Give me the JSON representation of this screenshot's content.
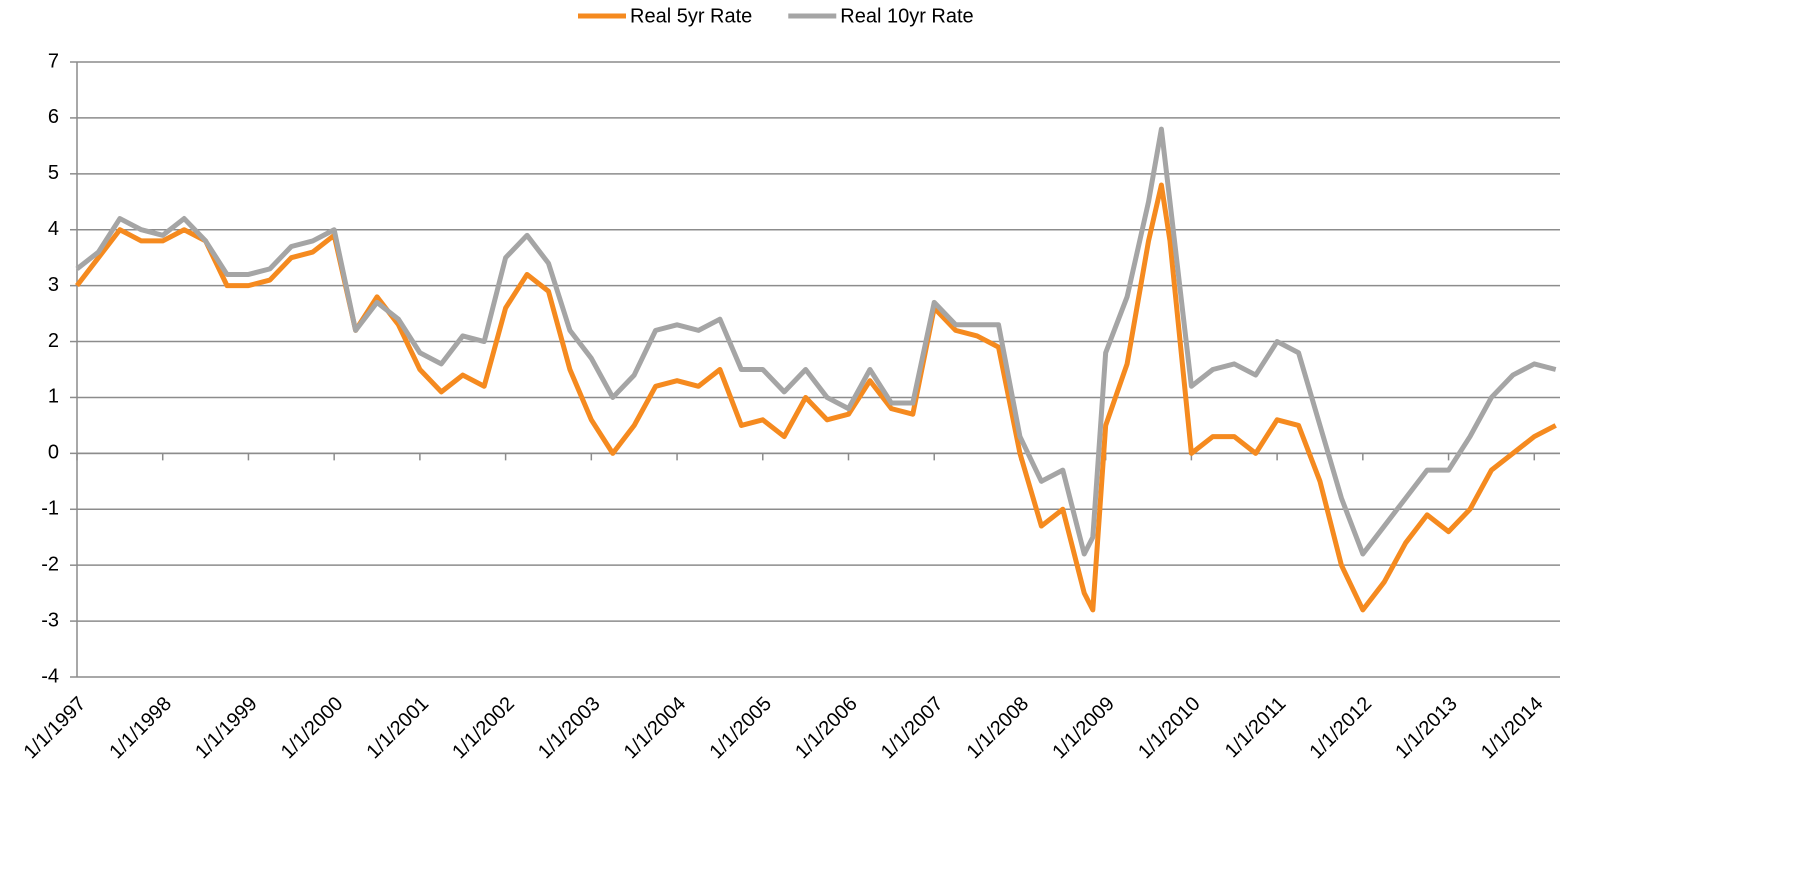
{
  "chart_data": {
    "type": "line",
    "x": [
      1997.0,
      1997.25,
      1997.5,
      1997.75,
      1998.0,
      1998.25,
      1998.5,
      1998.75,
      1999.0,
      1999.25,
      1999.5,
      1999.75,
      2000.0,
      2000.25,
      2000.5,
      2000.75,
      2001.0,
      2001.25,
      2001.5,
      2001.75,
      2002.0,
      2002.25,
      2002.5,
      2002.75,
      2003.0,
      2003.25,
      2003.5,
      2003.75,
      2004.0,
      2004.25,
      2004.5,
      2004.75,
      2005.0,
      2005.25,
      2005.5,
      2005.75,
      2006.0,
      2006.25,
      2006.5,
      2006.75,
      2007.0,
      2007.25,
      2007.5,
      2007.75,
      2008.0,
      2008.25,
      2008.5,
      2008.75,
      2008.85,
      2009.0,
      2009.25,
      2009.5,
      2009.65,
      2009.75,
      2010.0,
      2010.25,
      2010.5,
      2010.75,
      2011.0,
      2011.25,
      2011.5,
      2011.75,
      2012.0,
      2012.25,
      2012.5,
      2012.75,
      2013.0,
      2013.25,
      2013.5,
      2013.75,
      2014.0,
      2014.25
    ],
    "series": [
      {
        "name": "Real 5yr Rate",
        "color": "#f58a1f",
        "values": [
          3.0,
          3.5,
          4.0,
          3.8,
          3.8,
          4.0,
          3.8,
          3.0,
          3.0,
          3.1,
          3.5,
          3.6,
          3.9,
          2.2,
          2.8,
          2.3,
          1.5,
          1.1,
          1.4,
          1.2,
          2.6,
          3.2,
          2.9,
          1.5,
          0.6,
          0.0,
          0.5,
          1.2,
          1.3,
          1.2,
          1.5,
          0.5,
          0.6,
          0.3,
          1.0,
          0.6,
          0.7,
          1.3,
          0.8,
          0.7,
          2.6,
          2.2,
          2.1,
          1.9,
          0.0,
          -1.3,
          -1.0,
          -2.5,
          -2.8,
          0.5,
          1.6,
          3.8,
          4.8,
          3.8,
          0.0,
          0.3,
          0.3,
          0.0,
          0.6,
          0.5,
          -0.5,
          -2.0,
          -2.8,
          -2.3,
          -1.6,
          -1.1,
          -1.4,
          -1.0,
          -0.3,
          0.0,
          0.3,
          0.5
        ]
      },
      {
        "name": "Real 10yr Rate",
        "color": "#a5a5a5",
        "values": [
          3.3,
          3.6,
          4.2,
          4.0,
          3.9,
          4.2,
          3.8,
          3.2,
          3.2,
          3.3,
          3.7,
          3.8,
          4.0,
          2.2,
          2.7,
          2.4,
          1.8,
          1.6,
          2.1,
          2.0,
          3.5,
          3.9,
          3.4,
          2.2,
          1.7,
          1.0,
          1.4,
          2.2,
          2.3,
          2.2,
          2.4,
          1.5,
          1.5,
          1.1,
          1.5,
          1.0,
          0.8,
          1.5,
          0.9,
          0.9,
          2.7,
          2.3,
          2.3,
          2.3,
          0.3,
          -0.5,
          -0.3,
          -1.8,
          -1.5,
          1.8,
          2.8,
          4.5,
          5.8,
          4.5,
          1.2,
          1.5,
          1.6,
          1.4,
          2.0,
          1.8,
          0.5,
          -0.8,
          -1.8,
          -1.3,
          -0.8,
          -0.3,
          -0.3,
          0.3,
          1.0,
          1.4,
          1.6,
          1.5
        ]
      }
    ],
    "xlim": [
      1997,
      2014.3
    ],
    "xticks": [
      {
        "value": 1997,
        "label": "1/1/1997"
      },
      {
        "value": 1998,
        "label": "1/1/1998"
      },
      {
        "value": 1999,
        "label": "1/1/1999"
      },
      {
        "value": 2000,
        "label": "1/1/2000"
      },
      {
        "value": 2001,
        "label": "1/1/2001"
      },
      {
        "value": 2002,
        "label": "1/1/2002"
      },
      {
        "value": 2003,
        "label": "1/1/2003"
      },
      {
        "value": 2004,
        "label": "1/1/2004"
      },
      {
        "value": 2005,
        "label": "1/1/2005"
      },
      {
        "value": 2006,
        "label": "1/1/2006"
      },
      {
        "value": 2007,
        "label": "1/1/2007"
      },
      {
        "value": 2008,
        "label": "1/1/2008"
      },
      {
        "value": 2009,
        "label": "1/1/2009"
      },
      {
        "value": 2010,
        "label": "1/1/2010"
      },
      {
        "value": 2011,
        "label": "1/1/2011"
      },
      {
        "value": 2012,
        "label": "1/1/2012"
      },
      {
        "value": 2013,
        "label": "1/1/2013"
      },
      {
        "value": 2014,
        "label": "1/1/2014"
      }
    ],
    "ylim": [
      -4,
      7
    ],
    "yticks": [
      -4,
      -3,
      -2,
      -1,
      0,
      1,
      2,
      3,
      4,
      5,
      6,
      7
    ],
    "grid": true,
    "legend": "top"
  }
}
